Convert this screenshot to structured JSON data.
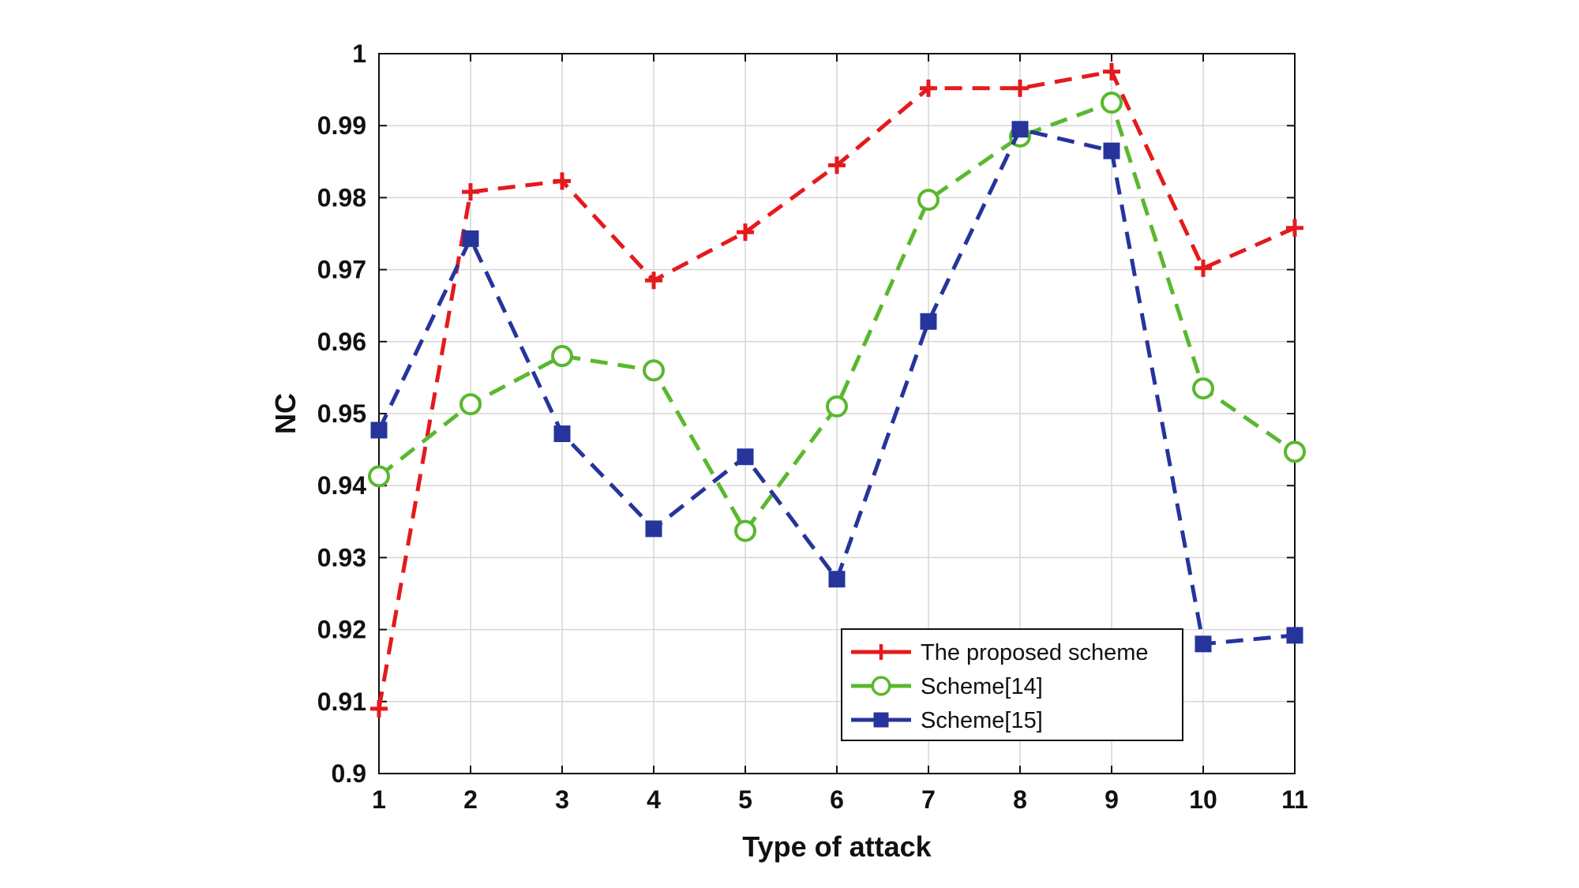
{
  "chart_data": {
    "type": "line",
    "xlabel": "Type of attack",
    "ylabel": "NC",
    "x": [
      1,
      2,
      3,
      4,
      5,
      6,
      7,
      8,
      9,
      10,
      11
    ],
    "xlim": [
      1,
      11
    ],
    "ylim": [
      0.9,
      1.0
    ],
    "yticks": [
      0.9,
      0.91,
      0.92,
      0.93,
      0.94,
      0.95,
      0.96,
      0.97,
      0.98,
      0.99,
      1
    ],
    "ytick_labels": [
      "0.9",
      "0.91",
      "0.92",
      "0.93",
      "0.94",
      "0.95",
      "0.96",
      "0.97",
      "0.98",
      "0.99",
      "1"
    ],
    "xtick_labels": [
      "1",
      "2",
      "3",
      "4",
      "5",
      "6",
      "7",
      "8",
      "9",
      "10",
      "11"
    ],
    "grid": true,
    "legend_position": "bottom-right",
    "series": [
      {
        "name": "The proposed scheme",
        "color": "#e41a1c",
        "marker": "plus",
        "values": [
          0.909,
          0.9808,
          0.9823,
          0.9685,
          0.9752,
          0.9845,
          0.9952,
          0.9952,
          0.9975,
          0.9702,
          0.9758
        ]
      },
      {
        "name": "Scheme[14]",
        "color": "#5ab82e",
        "marker": "circle",
        "values": [
          0.9413,
          0.9513,
          0.958,
          0.956,
          0.9337,
          0.951,
          0.9797,
          0.9885,
          0.9932,
          0.9535,
          0.9447
        ]
      },
      {
        "name": "Scheme[15]",
        "color": "#26349c",
        "marker": "square",
        "values": [
          0.9477,
          0.9743,
          0.9472,
          0.934,
          0.944,
          0.927,
          0.9628,
          0.9895,
          0.9865,
          0.918,
          0.9192
        ]
      }
    ]
  }
}
